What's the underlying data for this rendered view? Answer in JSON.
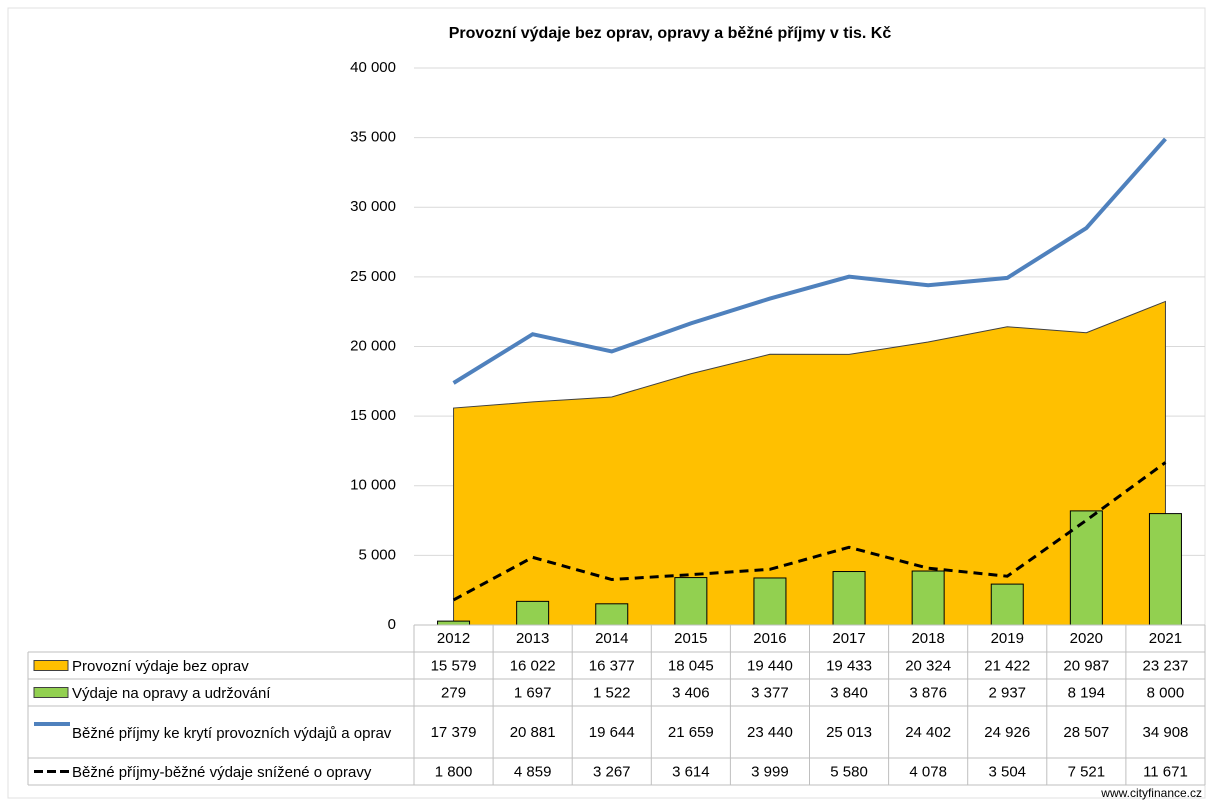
{
  "chart_data": {
    "type": "combo",
    "title": "Provozní výdaje bez oprav, opravy a běžné příjmy v tis. Kč",
    "categories": [
      "2012",
      "2013",
      "2014",
      "2015",
      "2016",
      "2017",
      "2018",
      "2019",
      "2020",
      "2021"
    ],
    "ylim": [
      0,
      40000
    ],
    "yticks": [
      0,
      {
        "value": 5000,
        "label": "5 000"
      },
      {
        "value": 10000,
        "label": "10 000"
      },
      {
        "value": 15000,
        "label": "15 000"
      },
      {
        "value": 20000,
        "label": "20 000"
      },
      {
        "value": 25000,
        "label": "25 000"
      },
      {
        "value": 30000,
        "label": "30 000"
      },
      {
        "value": 35000,
        "label": "35 000"
      },
      {
        "value": 40000,
        "label": "40 000"
      }
    ],
    "grid": true,
    "series": [
      {
        "name": "Provozní výdaje bez oprav",
        "type": "area",
        "color": "#FFC000",
        "values": [
          15579,
          16022,
          16377,
          18045,
          19440,
          19433,
          20324,
          21422,
          20987,
          23237
        ],
        "value_labels": [
          "15 579",
          "16 022",
          "16 377",
          "18 045",
          "19 440",
          "19 433",
          "20 324",
          "21 422",
          "20 987",
          "23 237"
        ]
      },
      {
        "name": "Výdaje na opravy a udržování",
        "type": "bar",
        "color": "#92D050",
        "values": [
          279,
          1697,
          1522,
          3406,
          3377,
          3840,
          3876,
          2937,
          8194,
          8000
        ],
        "value_labels": [
          "279",
          "1 697",
          "1 522",
          "3 406",
          "3 377",
          "3 840",
          "3 876",
          "2 937",
          "8 194",
          "8 000"
        ]
      },
      {
        "name": "Běžné příjmy ke krytí provozních výdajů a oprav",
        "type": "line",
        "color": "#4F81BD",
        "values": [
          17379,
          20881,
          19644,
          21659,
          23440,
          25013,
          24402,
          24926,
          28507,
          34908
        ],
        "value_labels": [
          "17 379",
          "20 881",
          "19 644",
          "21 659",
          "23 440",
          "25 013",
          "24 402",
          "24 926",
          "28 507",
          "34 908"
        ]
      },
      {
        "name": "Běžné příjmy-běžné výdaje snížené o opravy",
        "type": "dashed",
        "color": "#000000",
        "values": [
          1800,
          4859,
          3267,
          3614,
          3999,
          5580,
          4078,
          3504,
          7521,
          11671
        ],
        "value_labels": [
          "1 800",
          "4 859",
          "3 267",
          "3 614",
          "3 999",
          "5 580",
          "4 078",
          "3 504",
          "7 521",
          "11 671"
        ]
      }
    ],
    "source": "www.cityfinance.cz"
  }
}
